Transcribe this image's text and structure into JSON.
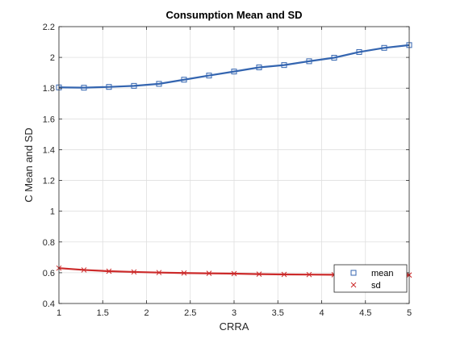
{
  "chart_data": {
    "type": "line",
    "title": "Consumption Mean and SD",
    "xlabel": "CRRA",
    "ylabel": "C Mean and SD",
    "xlim": [
      1,
      5
    ],
    "ylim": [
      0.4,
      2.2
    ],
    "xticks": [
      1,
      1.5,
      2,
      2.5,
      3,
      3.5,
      4,
      4.5,
      5
    ],
    "xtick_labels": [
      "1",
      "1.5",
      "2",
      "2.5",
      "3",
      "3.5",
      "4",
      "4.5",
      "5"
    ],
    "yticks": [
      0.4,
      0.6,
      0.8,
      1,
      1.2,
      1.4,
      1.6,
      1.8,
      2,
      2.2
    ],
    "ytick_labels": [
      "0.4",
      "0.6",
      "0.8",
      "1",
      "1.2",
      "1.4",
      "1.6",
      "1.8",
      "2",
      "2.2"
    ],
    "grid": true,
    "legend_position": "bottom-right",
    "x": [
      1,
      1.2857,
      1.5714,
      1.8571,
      2.1429,
      2.4286,
      2.7143,
      3,
      3.2857,
      3.5714,
      3.8571,
      4.1429,
      4.4286,
      4.7143,
      5
    ],
    "series": [
      {
        "name": "mean",
        "color": "#3465b0",
        "marker": "square",
        "values": [
          1.805,
          1.803,
          1.808,
          1.815,
          1.828,
          1.855,
          1.882,
          1.908,
          1.935,
          1.95,
          1.975,
          1.998,
          2.035,
          2.062,
          2.08
        ]
      },
      {
        "name": "sd",
        "color": "#cc2a2a",
        "marker": "x",
        "values": [
          0.63,
          0.618,
          0.61,
          0.605,
          0.601,
          0.598,
          0.596,
          0.594,
          0.591,
          0.589,
          0.588,
          0.587,
          0.586,
          0.586,
          0.585
        ]
      }
    ]
  }
}
